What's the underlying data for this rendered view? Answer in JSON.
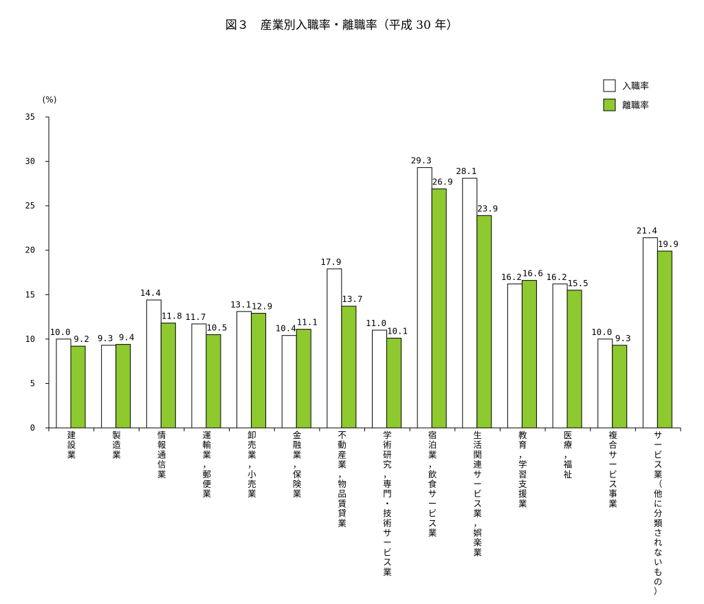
{
  "chart_data": {
    "type": "bar",
    "title": "図３　産業別入職率・離職率（平成 30 年）",
    "ylabel": "(%)",
    "ylim": [
      0,
      35
    ],
    "yticks": [
      0,
      5,
      10,
      15,
      20,
      25,
      30,
      35
    ],
    "grid": false,
    "legend_position": "top-right",
    "categories": [
      "建設業",
      "製造業",
      "情報通信業",
      "運輸業，郵便業",
      "卸売業，小売業",
      "金融業，保険業",
      "不動産業，物品賃貸業",
      "学術研究，専門・技術サービス業",
      "宿泊業，飲食サービス業",
      "生活関連サービス業，娯楽業",
      "教育，学習支援業",
      "医療，福祉",
      "複合サービス事業",
      "サービス業（他に分類されないもの）"
    ],
    "series": [
      {
        "name": "入職率",
        "color": "#ffffff",
        "values": [
          10.0,
          9.3,
          14.4,
          11.7,
          13.1,
          10.4,
          17.9,
          11.0,
          29.3,
          28.1,
          16.2,
          16.2,
          10.0,
          21.4
        ]
      },
      {
        "name": "離職率",
        "color": "#8dc92f",
        "values": [
          9.2,
          9.4,
          11.8,
          10.5,
          12.9,
          11.1,
          13.7,
          10.1,
          26.9,
          23.9,
          16.6,
          15.5,
          9.3,
          19.9
        ]
      }
    ]
  }
}
